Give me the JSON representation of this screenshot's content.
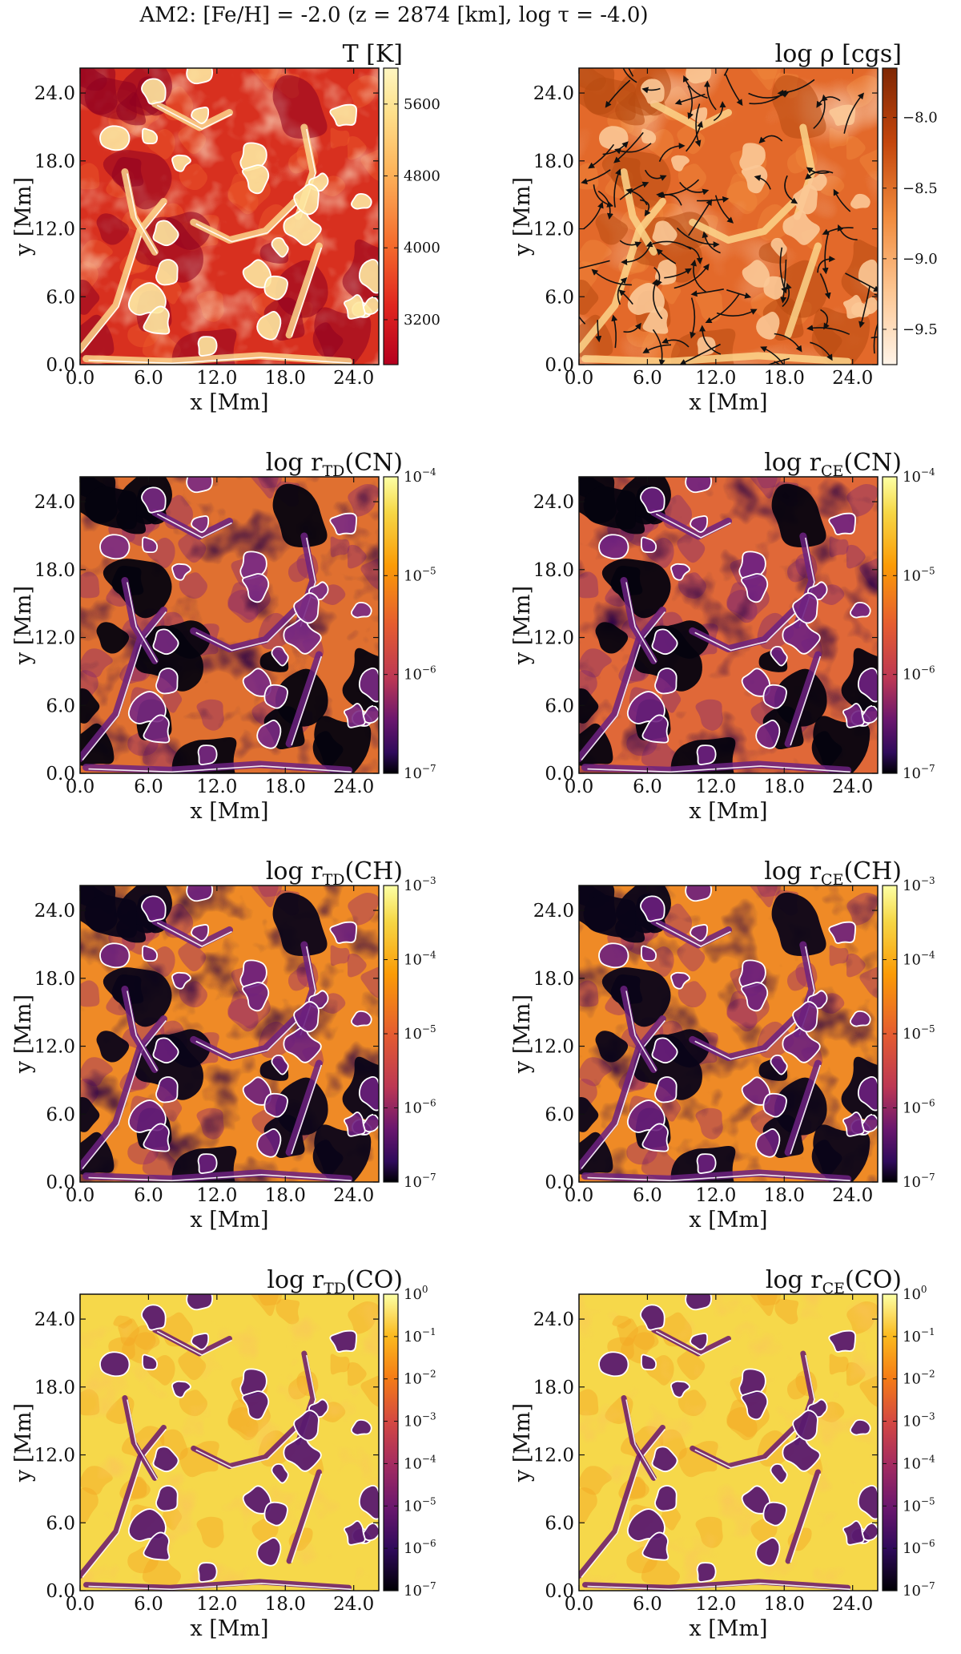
{
  "figure": {
    "title": "AM2: [Fe/H] = -2.0 (z = 2874 [km], log τ = -4.0)"
  },
  "chart_data": [
    {
      "type": "heatmap",
      "panel": "temperature",
      "title": "T [K]",
      "xlabel": "x [Mm]",
      "ylabel": "y [Mm]",
      "x_ticks": [
        "0.0",
        "6.0",
        "12.0",
        "18.0",
        "24.0"
      ],
      "y_ticks": [
        "0.0",
        "6.0",
        "12.0",
        "18.0",
        "24.0"
      ],
      "xlim": [
        0,
        26.2
      ],
      "ylim": [
        0,
        26.2
      ],
      "colorbar": {
        "scale": "linear",
        "range": [
          2700,
          6000
        ],
        "ticks": [
          "3200",
          "4000",
          "4800",
          "5600"
        ],
        "tick_values": [
          3200,
          4000,
          4800,
          5600
        ],
        "colormap": "YlOrRd"
      },
      "contours": "white"
    },
    {
      "type": "heatmap",
      "panel": "density",
      "title": "log ρ [cgs]",
      "xlabel": "x [Mm]",
      "ylabel": "y [Mm]",
      "x_ticks": [
        "0.0",
        "6.0",
        "12.0",
        "18.0",
        "24.0"
      ],
      "y_ticks": [
        "0.0",
        "6.0",
        "12.0",
        "18.0",
        "24.0"
      ],
      "xlim": [
        0,
        26.2
      ],
      "ylim": [
        0,
        26.2
      ],
      "colorbar": {
        "scale": "linear",
        "range": [
          -9.75,
          -7.65
        ],
        "ticks": [
          "−8.0",
          "−8.5",
          "−9.0",
          "−9.5"
        ],
        "tick_values": [
          -8.0,
          -8.5,
          -9.0,
          -9.5
        ],
        "colormap": "Oranges reversed"
      },
      "overlay": "velocity streamlines (black)"
    },
    {
      "type": "heatmap",
      "panel": "r_TD_CN",
      "title": "log r_TD(CN)",
      "xlabel": "x [Mm]",
      "ylabel": "y [Mm]",
      "x_ticks": [
        "0.0",
        "6.0",
        "12.0",
        "18.0",
        "24.0"
      ],
      "y_ticks": [
        "0.0",
        "6.0",
        "12.0",
        "18.0",
        "24.0"
      ],
      "xlim": [
        0,
        26.2
      ],
      "ylim": [
        0,
        26.2
      ],
      "colorbar": {
        "scale": "log",
        "range": [
          -7,
          -4
        ],
        "ticks": [
          "10",
          "10",
          "10",
          "10"
        ],
        "tick_exponents": [
          "−4",
          "−5",
          "−6",
          "−7"
        ],
        "tick_values": [
          -4,
          -5,
          -6,
          -7
        ],
        "colormap": "inferno"
      }
    },
    {
      "type": "heatmap",
      "panel": "r_CE_CN",
      "title": "log r_CE(CN)",
      "xlabel": "x [Mm]",
      "ylabel": "y [Mm]",
      "x_ticks": [
        "0.0",
        "6.0",
        "12.0",
        "18.0",
        "24.0"
      ],
      "y_ticks": [
        "0.0",
        "6.0",
        "12.0",
        "18.0",
        "24.0"
      ],
      "xlim": [
        0,
        26.2
      ],
      "ylim": [
        0,
        26.2
      ],
      "colorbar": {
        "scale": "log",
        "range": [
          -7,
          -4
        ],
        "ticks": [
          "10",
          "10",
          "10",
          "10"
        ],
        "tick_exponents": [
          "−4",
          "−5",
          "−6",
          "−7"
        ],
        "tick_values": [
          -4,
          -5,
          -6,
          -7
        ],
        "colormap": "inferno"
      }
    },
    {
      "type": "heatmap",
      "panel": "r_TD_CH",
      "title": "log r_TD(CH)",
      "xlabel": "x [Mm]",
      "ylabel": "y [Mm]",
      "x_ticks": [
        "0.0",
        "6.0",
        "12.0",
        "18.0",
        "24.0"
      ],
      "y_ticks": [
        "0.0",
        "6.0",
        "12.0",
        "18.0",
        "24.0"
      ],
      "xlim": [
        0,
        26.2
      ],
      "ylim": [
        0,
        26.2
      ],
      "colorbar": {
        "scale": "log",
        "range": [
          -7,
          -3
        ],
        "ticks": [
          "10",
          "10",
          "10",
          "10",
          "10"
        ],
        "tick_exponents": [
          "−3",
          "−4",
          "−5",
          "−6",
          "−7"
        ],
        "tick_values": [
          -3,
          -4,
          -5,
          -6,
          -7
        ],
        "colormap": "inferno"
      }
    },
    {
      "type": "heatmap",
      "panel": "r_CE_CH",
      "title": "log r_CE(CH)",
      "xlabel": "x [Mm]",
      "ylabel": "y [Mm]",
      "x_ticks": [
        "0.0",
        "6.0",
        "12.0",
        "18.0",
        "24.0"
      ],
      "y_ticks": [
        "0.0",
        "6.0",
        "12.0",
        "18.0",
        "24.0"
      ],
      "xlim": [
        0,
        26.2
      ],
      "ylim": [
        0,
        26.2
      ],
      "colorbar": {
        "scale": "log",
        "range": [
          -7,
          -3
        ],
        "ticks": [
          "10",
          "10",
          "10",
          "10",
          "10"
        ],
        "tick_exponents": [
          "−3",
          "−4",
          "−5",
          "−6",
          "−7"
        ],
        "tick_values": [
          -3,
          -4,
          -5,
          -6,
          -7
        ],
        "colormap": "inferno"
      }
    },
    {
      "type": "heatmap",
      "panel": "r_TD_CO",
      "title": "log r_TD(CO)",
      "xlabel": "x [Mm]",
      "ylabel": "y [Mm]",
      "x_ticks": [
        "0.0",
        "6.0",
        "12.0",
        "18.0",
        "24.0"
      ],
      "y_ticks": [
        "0.0",
        "6.0",
        "12.0",
        "18.0",
        "24.0"
      ],
      "xlim": [
        0,
        26.2
      ],
      "ylim": [
        0,
        26.2
      ],
      "colorbar": {
        "scale": "log",
        "range": [
          -7,
          0
        ],
        "ticks": [
          "10",
          "10",
          "10",
          "10",
          "10",
          "10",
          "10",
          "10"
        ],
        "tick_exponents": [
          "0",
          "−1",
          "−2",
          "−3",
          "−4",
          "−5",
          "−6",
          "−7"
        ],
        "tick_values": [
          0,
          -1,
          -2,
          -3,
          -4,
          -5,
          -6,
          -7
        ],
        "colormap": "inferno"
      }
    },
    {
      "type": "heatmap",
      "panel": "r_CE_CO",
      "title": "log r_CE(CO)",
      "xlabel": "x [Mm]",
      "ylabel": "y [Mm]",
      "x_ticks": [
        "0.0",
        "6.0",
        "12.0",
        "18.0",
        "24.0"
      ],
      "y_ticks": [
        "0.0",
        "6.0",
        "12.0",
        "18.0",
        "24.0"
      ],
      "xlim": [
        0,
        26.2
      ],
      "ylim": [
        0,
        26.2
      ],
      "colorbar": {
        "scale": "log",
        "range": [
          -7,
          0
        ],
        "ticks": [
          "10",
          "10",
          "10",
          "10",
          "10",
          "10",
          "10",
          "10"
        ],
        "tick_exponents": [
          "0",
          "−1",
          "−2",
          "−3",
          "−4",
          "−5",
          "−6",
          "−7"
        ],
        "tick_values": [
          0,
          -1,
          -2,
          -3,
          -4,
          -5,
          -6,
          -7
        ],
        "colormap": "inferno"
      }
    }
  ]
}
